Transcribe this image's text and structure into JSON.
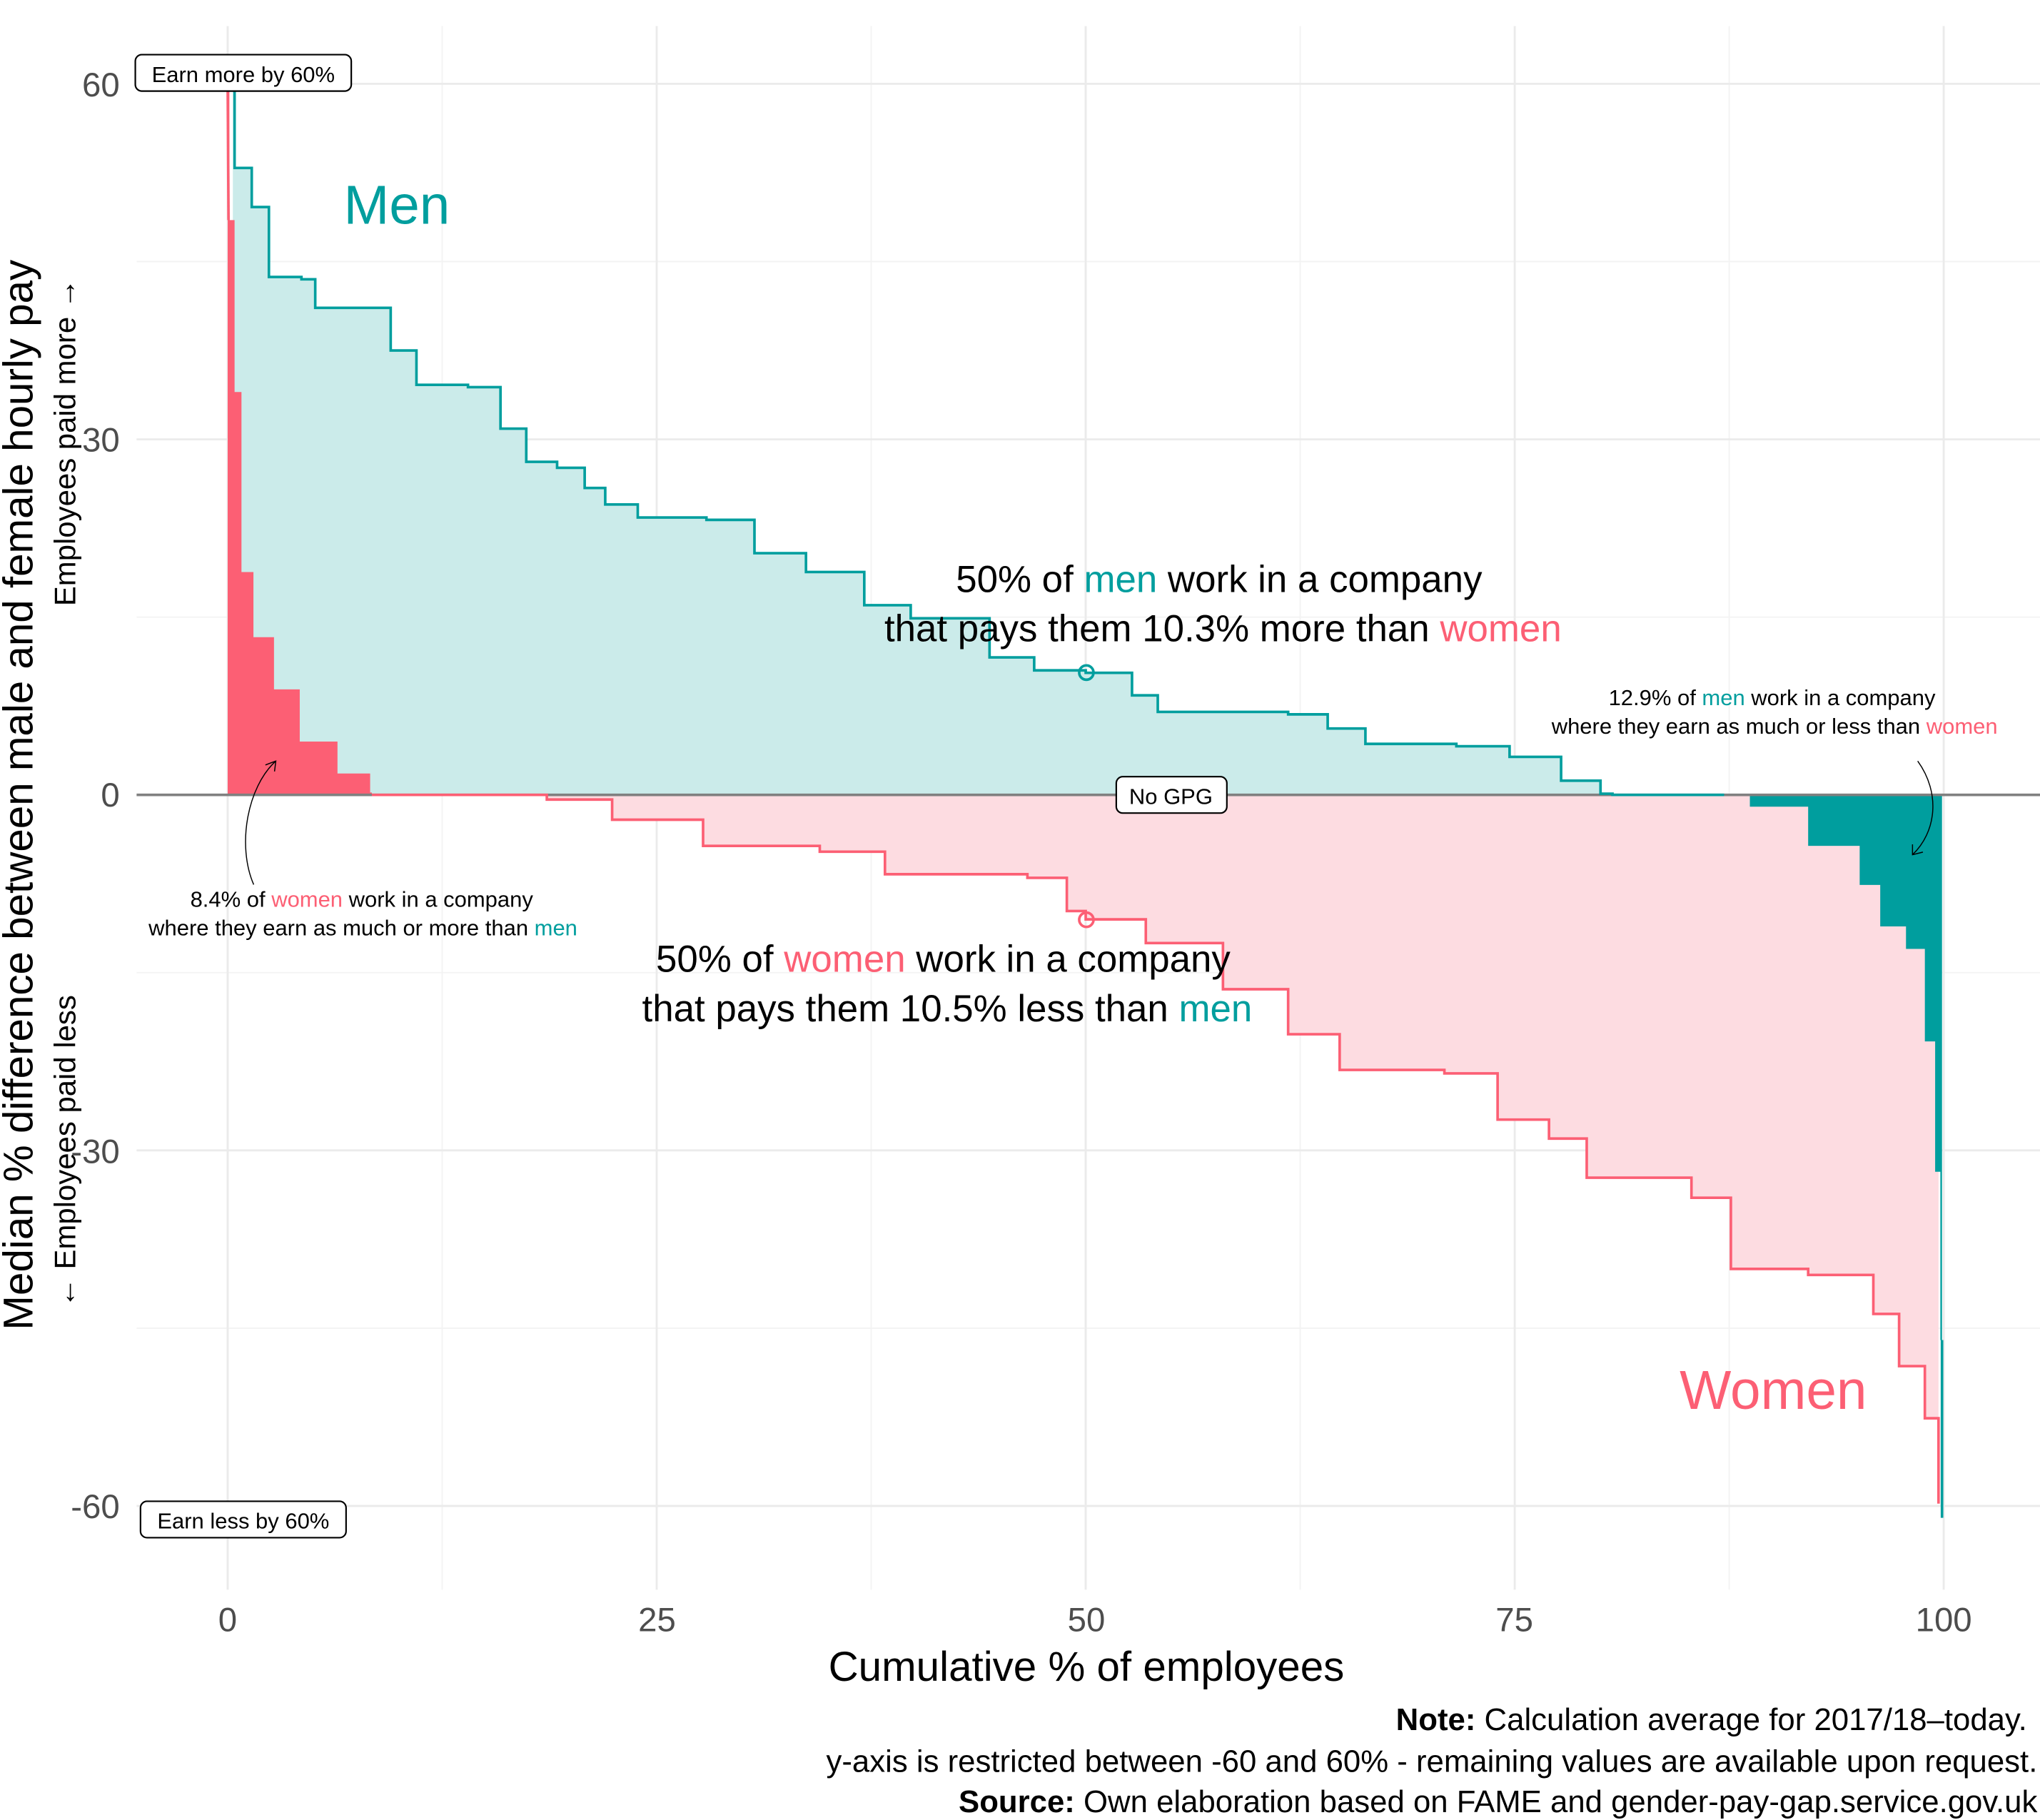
{
  "chart_data": {
    "type": "area",
    "xlabel": "Cumulative % of employees",
    "ylabel": "Median % difference between male and female hourly pay",
    "ylabel_up": "Employees paid more →",
    "ylabel_down": "← Employees paid less",
    "xlim": [
      0,
      100
    ],
    "ylim": [
      -60,
      60
    ],
    "x_ticks": [
      0,
      25,
      50,
      75,
      100
    ],
    "x_tick_labels": [
      "0",
      "25",
      "50",
      "75",
      "100"
    ],
    "y_ticks": [
      60,
      30,
      0,
      -30,
      -60
    ],
    "y_tick_labels": [
      "60",
      "30",
      "0",
      "-30",
      "-60"
    ],
    "grid": true,
    "colors": {
      "men": "#009E9E",
      "women": "#FC5F74",
      "men_fill": "#CBEBEA",
      "women_fill": "#FDDCE1"
    },
    "series": [
      {
        "name": "Men",
        "points": [
          [
            0.3,
            60
          ],
          [
            0.4,
            52.9
          ],
          [
            1.4,
            49.6
          ],
          [
            2.4,
            43.7
          ],
          [
            4.3,
            43.5
          ],
          [
            5.1,
            41.1
          ],
          [
            8.2,
            41.1
          ],
          [
            9.5,
            37.5
          ],
          [
            11,
            34.6
          ],
          [
            14,
            34.4
          ],
          [
            15.9,
            30.9
          ],
          [
            17.4,
            28.1
          ],
          [
            19.2,
            27.6
          ],
          [
            20.8,
            25.9
          ],
          [
            22,
            24.5
          ],
          [
            23.9,
            23.4
          ],
          [
            27.9,
            23.2
          ],
          [
            30.7,
            20.4
          ],
          [
            33.7,
            18.8
          ],
          [
            37.1,
            16
          ],
          [
            39.8,
            14.9
          ],
          [
            44.4,
            11.6
          ],
          [
            47,
            10.5
          ],
          [
            50,
            10.3
          ],
          [
            52.7,
            8.4
          ],
          [
            54.2,
            7
          ],
          [
            61.8,
            6.8
          ],
          [
            64.1,
            5.6
          ],
          [
            66.3,
            4.3
          ],
          [
            71.6,
            4.1
          ],
          [
            74.7,
            3.2
          ],
          [
            77.7,
            1.2
          ],
          [
            80,
            0.1
          ],
          [
            80.7,
            0
          ],
          [
            87.2,
            0
          ],
          [
            88.7,
            -1
          ],
          [
            92.1,
            -4.3
          ],
          [
            95.1,
            -7.6
          ],
          [
            96.3,
            -11.1
          ],
          [
            97.8,
            -13
          ],
          [
            98.9,
            -20.8
          ],
          [
            99.5,
            -31.8
          ],
          [
            99.8,
            -46
          ],
          [
            99.9,
            -61
          ]
        ]
      },
      {
        "name": "Women",
        "points": [
          [
            0,
            60
          ],
          [
            0.1,
            48.5
          ],
          [
            0.4,
            34
          ],
          [
            0.8,
            18.8
          ],
          [
            1.5,
            13.3
          ],
          [
            2.7,
            8.9
          ],
          [
            4.2,
            4.5
          ],
          [
            6.4,
            1.8
          ],
          [
            8.3,
            0.2
          ],
          [
            8.4,
            0
          ],
          [
            16,
            0
          ],
          [
            18.6,
            -0.4
          ],
          [
            22.4,
            -2.1
          ],
          [
            27.7,
            -4.3
          ],
          [
            34.5,
            -4.8
          ],
          [
            38.3,
            -6.7
          ],
          [
            46.6,
            -7
          ],
          [
            48.9,
            -9.8
          ],
          [
            50,
            -10.5
          ],
          [
            53.5,
            -12.5
          ],
          [
            58,
            -16.4
          ],
          [
            61.8,
            -20.2
          ],
          [
            64.8,
            -23.2
          ],
          [
            70.9,
            -23.5
          ],
          [
            74,
            -27.4
          ],
          [
            77,
            -29
          ],
          [
            79.2,
            -32.3
          ],
          [
            85.3,
            -34
          ],
          [
            87.6,
            -40
          ],
          [
            92.1,
            -40.5
          ],
          [
            95.9,
            -43.8
          ],
          [
            97.4,
            -48.2
          ],
          [
            98.9,
            -52.6
          ],
          [
            99.7,
            -59.8
          ]
        ]
      }
    ],
    "medians": [
      {
        "series": "Men",
        "x": 50,
        "y": 10.3
      },
      {
        "series": "Women",
        "x": 50,
        "y": -10.5
      }
    ],
    "annotations": {
      "men_label": "Men",
      "women_label": "Women",
      "top_box": "Earn more by 60%",
      "bottom_box": "Earn less by 60%",
      "zero_box": "No GPG",
      "men_median": {
        "l1a": "50% of ",
        "l1b": "men",
        "l1c": " work in a company",
        "l2a": "that pays them 10.3% more than ",
        "l2b": "women"
      },
      "women_median": {
        "l1a": "50% of ",
        "l1b": "women",
        "l1c": " work in a company",
        "l2a": "that pays them 10.5% less than ",
        "l2b": "men"
      },
      "women_share": {
        "l1a": "8.4% of ",
        "l1b": "women",
        "l1c": " work in a company",
        "l2a": "where they earn as much or more than ",
        "l2b": "men"
      },
      "men_share": {
        "l1a": "12.9% of ",
        "l1b": "men",
        "l1c": " work in a company",
        "l2a": "where they earn as much or less than ",
        "l2b": "women"
      }
    },
    "caption": {
      "note_label": "Note:",
      "note": " Calculation average for 2017/18–today.",
      "restriction": "y-axis is restricted between -60 and 60% - remaining values are available upon request.",
      "source_label": "Source:",
      "source": " Own elaboration based on FAME and gender-pay-gap.service.gov.uk"
    }
  }
}
